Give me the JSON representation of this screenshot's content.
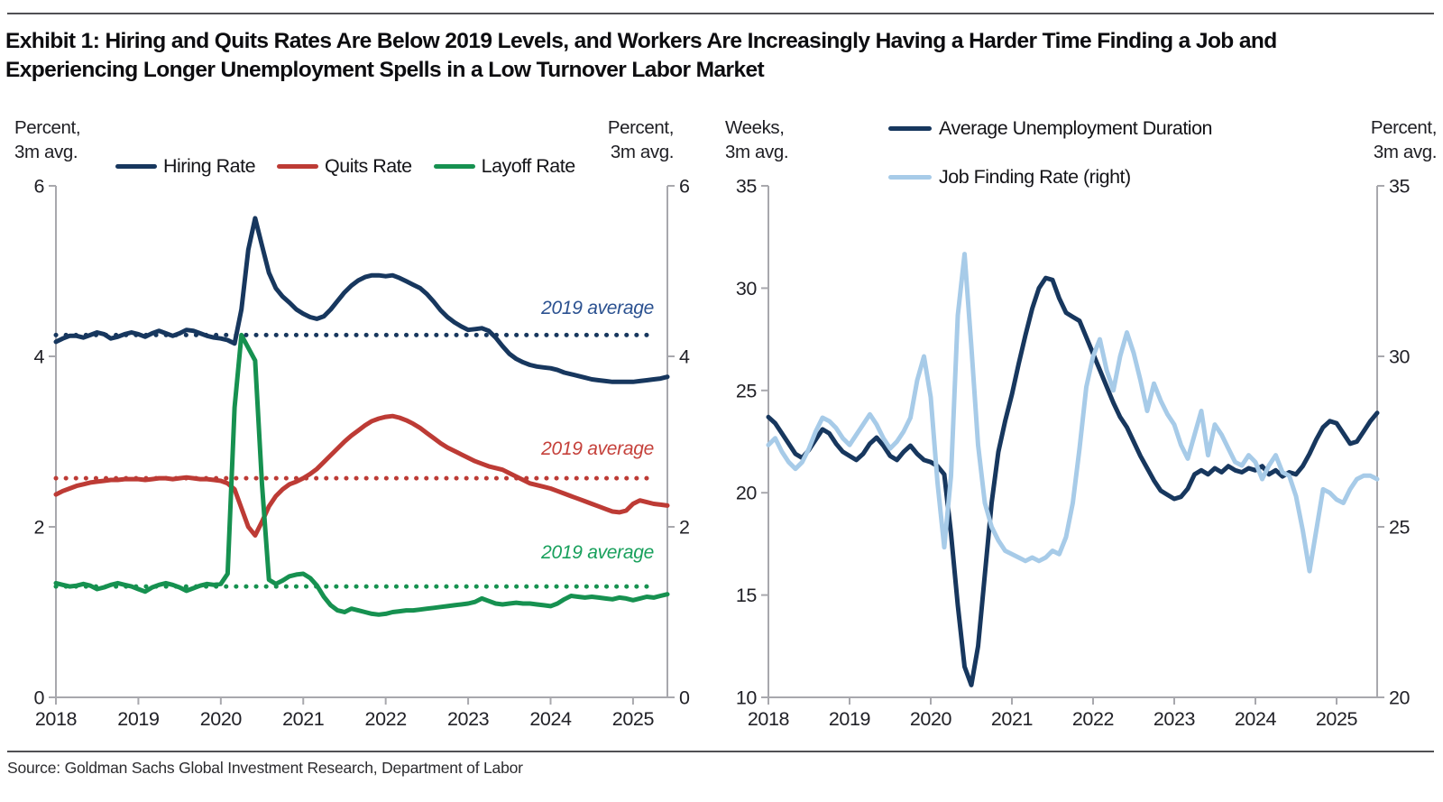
{
  "page": {
    "title_line1": "Exhibit 1: Hiring and Quits Rates Are Below 2019 Levels, and Workers Are Increasingly Having a Harder Time Finding a Job and",
    "title_line2": "Experiencing Longer Unemployment Spells in a Low Turnover Labor Market",
    "source": "Source: Goldman Sachs Global Investment Research, Department of Labor"
  },
  "colors": {
    "navy": "#17375E",
    "red": "#BD3B35",
    "green": "#169150",
    "lightblue": "#A7CBE8",
    "axis": "#A8A8AD",
    "tick_text": "#212127",
    "navy_annotation": "#2B5190",
    "red_annotation": "#C5413B",
    "green_annotation": "#18A05C"
  },
  "chart_data": [
    {
      "type": "line",
      "panel": "left",
      "unit_label_left": "Percent,\n3m avg.",
      "unit_label_right": "Percent,\n3m avg.",
      "x_start": "2018-01",
      "x_end": "2025-06",
      "x_tick_labels": [
        "2018",
        "2019",
        "2020",
        "2021",
        "2022",
        "2023",
        "2024",
        "2025"
      ],
      "y_axis_left": {
        "min": 0,
        "max": 6,
        "ticks": [
          0,
          2,
          4,
          6
        ]
      },
      "y_axis_right": {
        "min": 0,
        "max": 6,
        "ticks": [
          0,
          2,
          4,
          6
        ]
      },
      "legend": [
        {
          "label": "Hiring Rate",
          "color_key": "navy"
        },
        {
          "label": "Quits Rate",
          "color_key": "red"
        },
        {
          "label": "Layoff Rate",
          "color_key": "green"
        }
      ],
      "reference_lines": [
        {
          "label": "2019 average",
          "value": 4.25,
          "color_key": "navy",
          "annotation_color_key": "navy_annotation"
        },
        {
          "label": "2019 average",
          "value": 2.57,
          "color_key": "red",
          "annotation_color_key": "red_annotation"
        },
        {
          "label": "2019 average",
          "value": 1.3,
          "color_key": "green",
          "annotation_color_key": "green_annotation"
        }
      ],
      "series": [
        {
          "name": "Hiring Rate",
          "axis": "left",
          "color_key": "navy",
          "values": [
            4.17,
            4.21,
            4.24,
            4.24,
            4.22,
            4.25,
            4.28,
            4.26,
            4.21,
            4.23,
            4.26,
            4.28,
            4.26,
            4.23,
            4.27,
            4.3,
            4.27,
            4.24,
            4.27,
            4.31,
            4.3,
            4.27,
            4.24,
            4.22,
            4.21,
            4.19,
            4.15,
            4.55,
            5.25,
            5.62,
            5.3,
            4.98,
            4.8,
            4.7,
            4.63,
            4.55,
            4.5,
            4.46,
            4.44,
            4.47,
            4.55,
            4.65,
            4.75,
            4.83,
            4.89,
            4.93,
            4.95,
            4.95,
            4.94,
            4.95,
            4.92,
            4.88,
            4.84,
            4.8,
            4.73,
            4.64,
            4.54,
            4.46,
            4.4,
            4.35,
            4.31,
            4.32,
            4.33,
            4.3,
            4.22,
            4.12,
            4.03,
            3.97,
            3.93,
            3.9,
            3.88,
            3.87,
            3.86,
            3.84,
            3.81,
            3.79,
            3.77,
            3.75,
            3.73,
            3.72,
            3.71,
            3.7,
            3.7,
            3.7,
            3.7,
            3.71,
            3.72,
            3.73,
            3.74,
            3.76
          ]
        },
        {
          "name": "Quits Rate",
          "axis": "left",
          "color_key": "red",
          "values": [
            2.38,
            2.42,
            2.45,
            2.48,
            2.5,
            2.52,
            2.53,
            2.54,
            2.55,
            2.55,
            2.56,
            2.56,
            2.56,
            2.55,
            2.56,
            2.57,
            2.57,
            2.56,
            2.57,
            2.58,
            2.57,
            2.56,
            2.56,
            2.55,
            2.54,
            2.51,
            2.44,
            2.22,
            2.0,
            1.9,
            2.06,
            2.24,
            2.36,
            2.44,
            2.5,
            2.53,
            2.57,
            2.62,
            2.68,
            2.76,
            2.84,
            2.92,
            3.0,
            3.07,
            3.13,
            3.19,
            3.24,
            3.27,
            3.29,
            3.3,
            3.28,
            3.25,
            3.21,
            3.16,
            3.1,
            3.04,
            2.98,
            2.93,
            2.89,
            2.85,
            2.81,
            2.77,
            2.74,
            2.71,
            2.69,
            2.67,
            2.63,
            2.59,
            2.55,
            2.51,
            2.49,
            2.47,
            2.45,
            2.42,
            2.39,
            2.36,
            2.33,
            2.3,
            2.27,
            2.24,
            2.21,
            2.18,
            2.17,
            2.19,
            2.27,
            2.31,
            2.29,
            2.27,
            2.26,
            2.25
          ]
        },
        {
          "name": "Layoff Rate",
          "axis": "left",
          "color_key": "green",
          "values": [
            1.34,
            1.32,
            1.3,
            1.31,
            1.33,
            1.31,
            1.27,
            1.29,
            1.32,
            1.34,
            1.32,
            1.3,
            1.27,
            1.24,
            1.29,
            1.32,
            1.34,
            1.32,
            1.29,
            1.25,
            1.28,
            1.31,
            1.33,
            1.32,
            1.33,
            1.45,
            3.4,
            4.25,
            4.1,
            3.95,
            2.5,
            1.38,
            1.33,
            1.37,
            1.42,
            1.44,
            1.45,
            1.4,
            1.31,
            1.18,
            1.08,
            1.02,
            1.0,
            1.04,
            1.02,
            1.0,
            0.98,
            0.97,
            0.98,
            1.0,
            1.01,
            1.02,
            1.02,
            1.03,
            1.04,
            1.05,
            1.06,
            1.07,
            1.08,
            1.09,
            1.1,
            1.12,
            1.16,
            1.13,
            1.1,
            1.09,
            1.1,
            1.11,
            1.1,
            1.1,
            1.09,
            1.08,
            1.07,
            1.1,
            1.15,
            1.19,
            1.18,
            1.17,
            1.18,
            1.17,
            1.16,
            1.15,
            1.17,
            1.16,
            1.14,
            1.16,
            1.18,
            1.17,
            1.19,
            1.21
          ]
        }
      ]
    },
    {
      "type": "line",
      "panel": "right",
      "unit_label_left": "Weeks,\n3m avg.",
      "unit_label_right": "Percent,\n3m avg.",
      "x_start": "2018-01",
      "x_end": "2025-07",
      "x_tick_labels": [
        "2018",
        "2019",
        "2020",
        "2021",
        "2022",
        "2023",
        "2024",
        "2025"
      ],
      "y_axis_left": {
        "min": 10,
        "max": 35,
        "ticks": [
          10,
          15,
          20,
          25,
          30,
          35
        ]
      },
      "y_axis_right": {
        "min": 20,
        "max": 35,
        "ticks": [
          20,
          25,
          30,
          35
        ]
      },
      "legend": [
        {
          "label": "Average Unemployment Duration",
          "color_key": "navy"
        },
        {
          "label": "Job Finding Rate (right)",
          "color_key": "lightblue"
        }
      ],
      "reference_lines": [],
      "series": [
        {
          "name": "Average Unemployment Duration",
          "axis": "left",
          "color_key": "navy",
          "values": [
            23.7,
            23.4,
            22.9,
            22.4,
            21.9,
            21.7,
            22.1,
            22.6,
            23.1,
            22.9,
            22.4,
            22.0,
            21.8,
            21.6,
            21.9,
            22.4,
            22.7,
            22.3,
            21.8,
            21.6,
            22.0,
            22.3,
            21.9,
            21.6,
            21.5,
            21.3,
            20.9,
            18.0,
            14.5,
            11.5,
            10.6,
            12.5,
            16.0,
            19.5,
            22.0,
            23.5,
            24.8,
            26.3,
            27.7,
            29.0,
            30.0,
            30.5,
            30.4,
            29.5,
            28.8,
            28.6,
            28.4,
            27.6,
            26.8,
            26.0,
            25.2,
            24.4,
            23.7,
            23.2,
            22.5,
            21.8,
            21.2,
            20.6,
            20.1,
            19.9,
            19.7,
            19.8,
            20.2,
            20.9,
            21.1,
            20.9,
            21.2,
            21.0,
            21.3,
            21.1,
            21.0,
            21.2,
            21.1,
            21.3,
            20.9,
            21.1,
            20.8,
            21.0,
            20.9,
            21.3,
            21.9,
            22.6,
            23.2,
            23.5,
            23.4,
            22.9,
            22.4,
            22.5,
            23.0,
            23.5,
            23.9
          ]
        },
        {
          "name": "Job Finding Rate",
          "axis": "right",
          "color_key": "lightblue",
          "values": [
            27.4,
            27.6,
            27.2,
            26.9,
            26.7,
            26.9,
            27.3,
            27.8,
            28.2,
            28.1,
            27.9,
            27.6,
            27.4,
            27.7,
            28.0,
            28.3,
            28.0,
            27.6,
            27.3,
            27.5,
            27.8,
            28.2,
            29.3,
            30.0,
            28.8,
            26.3,
            24.4,
            26.5,
            31.2,
            33.0,
            30.3,
            27.4,
            25.7,
            25.0,
            24.6,
            24.3,
            24.2,
            24.1,
            24.0,
            24.1,
            24.0,
            24.1,
            24.3,
            24.2,
            24.7,
            25.7,
            27.3,
            29.1,
            30.0,
            30.5,
            29.6,
            29.0,
            30.0,
            30.7,
            30.1,
            29.3,
            28.4,
            29.2,
            28.7,
            28.3,
            28.0,
            27.4,
            27.0,
            27.7,
            28.4,
            27.1,
            28.0,
            27.7,
            27.3,
            26.9,
            26.8,
            27.1,
            26.9,
            26.4,
            26.8,
            27.1,
            26.6,
            26.5,
            25.9,
            24.9,
            23.7,
            24.9,
            26.1,
            26.0,
            25.8,
            25.7,
            26.1,
            26.4,
            26.5,
            26.5,
            26.4
          ]
        }
      ]
    }
  ]
}
